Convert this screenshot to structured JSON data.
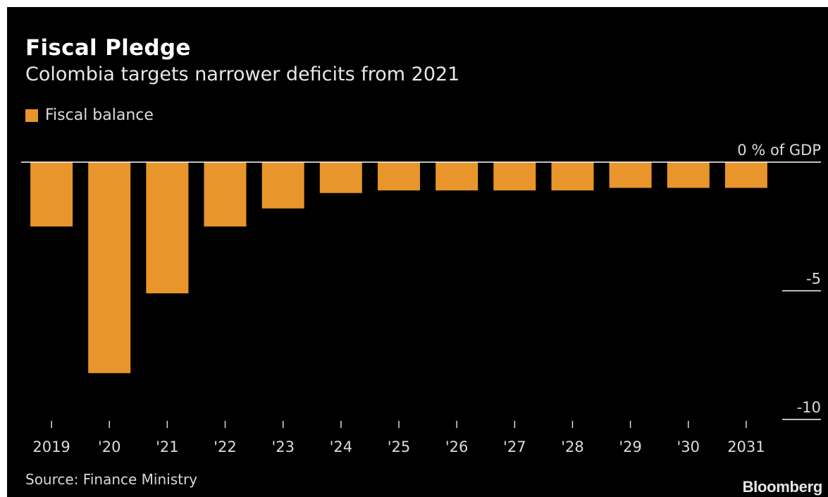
{
  "header": {
    "title": "Fiscal Pledge",
    "subtitle": "Colombia targets narrower deficits from 2021"
  },
  "legend": {
    "label": "Fiscal balance",
    "color": "#e8952b"
  },
  "footer": {
    "source": "Source: Finance Ministry",
    "brand": "Bloomberg"
  },
  "chart_data": {
    "type": "bar",
    "categories": [
      "2019",
      "'20",
      "'21",
      "'22",
      "'23",
      "'24",
      "'25",
      "'26",
      "'27",
      "'28",
      "'29",
      "'30",
      "2031"
    ],
    "series": [
      {
        "name": "Fiscal balance",
        "values": [
          -2.5,
          -8.2,
          -5.1,
          -2.5,
          -1.8,
          -1.2,
          -1.1,
          -1.1,
          -1.1,
          -1.1,
          -1.0,
          -1.0,
          -1.0
        ]
      }
    ],
    "ylim": [
      -10,
      0
    ],
    "yticks": [
      {
        "value": 0,
        "label": "0 % of GDP"
      },
      {
        "value": -5,
        "label": "-5"
      },
      {
        "value": -10,
        "label": "-10"
      }
    ],
    "bar_color": "#e8952b",
    "background": "#000000",
    "grid": false,
    "legend_position": "top-left"
  }
}
